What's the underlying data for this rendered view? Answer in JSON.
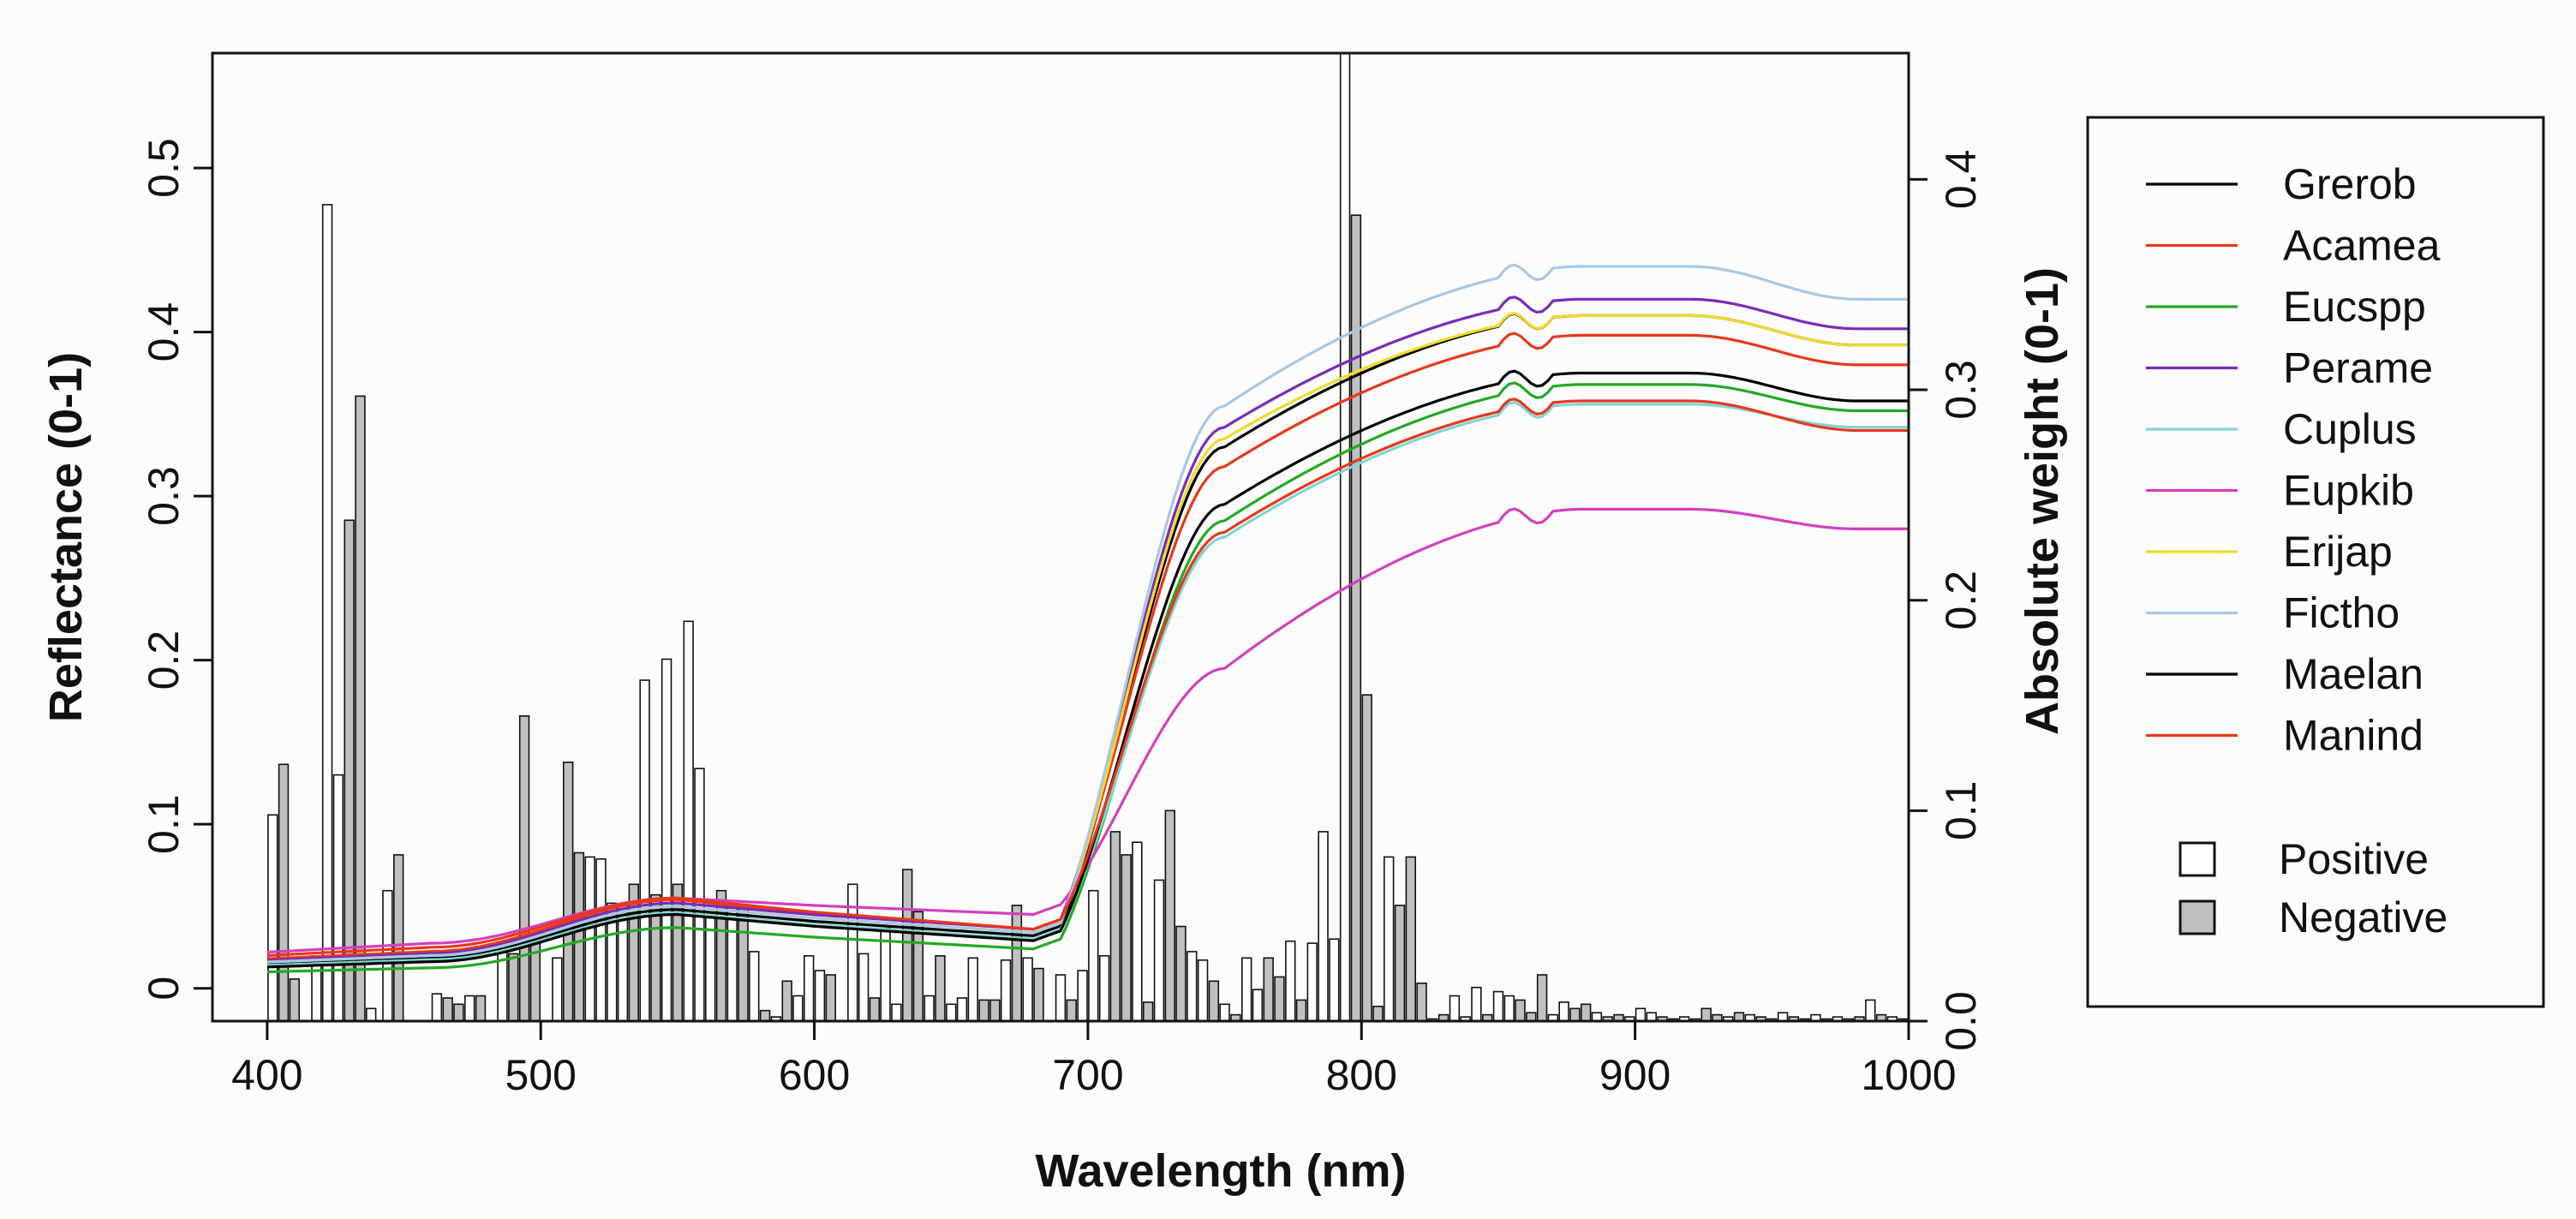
{
  "chart_data": {
    "type": "line",
    "xlabel": "Wavelength (nm)",
    "ylabel": "Reflectance (0-1)",
    "y2label": "Absolute weight (0-1)",
    "xlim": [
      380,
      1000
    ],
    "ylim": [
      -0.02,
      0.57
    ],
    "y2lim": [
      0.0,
      0.46
    ],
    "x_ticks": [
      400,
      500,
      600,
      700,
      800,
      900,
      1000
    ],
    "y_ticks": [
      0,
      0.1,
      0.2,
      0.3,
      0.4,
      0.5
    ],
    "y_tick_labels": [
      "0",
      "0.1",
      "0.2",
      "0.3",
      "0.4",
      "0.5"
    ],
    "y2_ticks": [
      0.0,
      0.1,
      0.2,
      0.3,
      0.4
    ],
    "y2_tick_labels": [
      "0.0",
      "0.1",
      "0.2",
      "0.3",
      "0.4"
    ],
    "grid": false,
    "legend_position": "right",
    "series": [
      {
        "name": "Grerob",
        "color": "#000000",
        "v400": 0.015,
        "v550": 0.048,
        "v680": 0.032,
        "v750": 0.33,
        "v880": 0.41,
        "v1000": 0.392
      },
      {
        "name": "Acamea",
        "color": "#e8381b",
        "v400": 0.018,
        "v550": 0.054,
        "v680": 0.036,
        "v750": 0.318,
        "v880": 0.398,
        "v1000": 0.38
      },
      {
        "name": "Eucspp",
        "color": "#22aa22",
        "v400": 0.01,
        "v550": 0.037,
        "v680": 0.024,
        "v750": 0.285,
        "v880": 0.368,
        "v1000": 0.352
      },
      {
        "name": "Perame",
        "color": "#7a2bb8",
        "v400": 0.017,
        "v550": 0.052,
        "v680": 0.036,
        "v750": 0.342,
        "v880": 0.42,
        "v1000": 0.402
      },
      {
        "name": "Cuplus",
        "color": "#7fd6d4",
        "v400": 0.014,
        "v550": 0.046,
        "v680": 0.03,
        "v750": 0.275,
        "v880": 0.356,
        "v1000": 0.342
      },
      {
        "name": "Eupkib",
        "color": "#d43fc0",
        "v400": 0.022,
        "v550": 0.055,
        "v680": 0.045,
        "v750": 0.195,
        "v880": 0.292,
        "v1000": 0.28
      },
      {
        "name": "Erijap",
        "color": "#f0dc2a",
        "v400": 0.016,
        "v550": 0.05,
        "v680": 0.034,
        "v750": 0.335,
        "v880": 0.41,
        "v1000": 0.392
      },
      {
        "name": "Fictho",
        "color": "#a8c8e4",
        "v400": 0.016,
        "v550": 0.05,
        "v680": 0.034,
        "v750": 0.355,
        "v880": 0.44,
        "v1000": 0.42
      },
      {
        "name": "Maelan",
        "color": "#000000",
        "v400": 0.013,
        "v550": 0.045,
        "v680": 0.029,
        "v750": 0.295,
        "v880": 0.375,
        "v1000": 0.358
      },
      {
        "name": "Manind",
        "color": "#e8381b",
        "v400": 0.02,
        "v550": 0.055,
        "v680": 0.036,
        "v750": 0.278,
        "v880": 0.358,
        "v1000": 0.34
      }
    ],
    "bar_series": [
      {
        "name": "Positive",
        "fill": "#ffffff"
      },
      {
        "name": "Negative",
        "fill": "#c0c0c0"
      }
    ],
    "bars": [
      {
        "x": 402,
        "w": 0.098,
        "sign": "Positive"
      },
      {
        "x": 406,
        "w": 0.122,
        "sign": "Negative"
      },
      {
        "x": 410,
        "w": 0.02,
        "sign": "Negative"
      },
      {
        "x": 418,
        "w": 0.031,
        "sign": "Positive"
      },
      {
        "x": 422,
        "w": 0.388,
        "sign": "Positive"
      },
      {
        "x": 426,
        "w": 0.117,
        "sign": "Positive"
      },
      {
        "x": 430,
        "w": 0.238,
        "sign": "Negative"
      },
      {
        "x": 434,
        "w": 0.297,
        "sign": "Negative"
      },
      {
        "x": 438,
        "w": 0.006,
        "sign": "Positive"
      },
      {
        "x": 444,
        "w": 0.062,
        "sign": "Positive"
      },
      {
        "x": 448,
        "w": 0.079,
        "sign": "Negative"
      },
      {
        "x": 462,
        "w": 0.013,
        "sign": "Positive"
      },
      {
        "x": 466,
        "w": 0.011,
        "sign": "Negative"
      },
      {
        "x": 470,
        "w": 0.008,
        "sign": "Negative"
      },
      {
        "x": 474,
        "w": 0.012,
        "sign": "Positive"
      },
      {
        "x": 478,
        "w": 0.012,
        "sign": "Negative"
      },
      {
        "x": 486,
        "w": 0.035,
        "sign": "Positive"
      },
      {
        "x": 490,
        "w": 0.032,
        "sign": "Negative"
      },
      {
        "x": 494,
        "w": 0.145,
        "sign": "Negative"
      },
      {
        "x": 498,
        "w": 0.04,
        "sign": "Negative"
      },
      {
        "x": 506,
        "w": 0.03,
        "sign": "Positive"
      },
      {
        "x": 510,
        "w": 0.123,
        "sign": "Negative"
      },
      {
        "x": 514,
        "w": 0.08,
        "sign": "Negative"
      },
      {
        "x": 518,
        "w": 0.078,
        "sign": "Positive"
      },
      {
        "x": 522,
        "w": 0.077,
        "sign": "Positive"
      },
      {
        "x": 526,
        "w": 0.056,
        "sign": "Positive"
      },
      {
        "x": 530,
        "w": 0.055,
        "sign": "Positive"
      },
      {
        "x": 534,
        "w": 0.065,
        "sign": "Negative"
      },
      {
        "x": 538,
        "w": 0.162,
        "sign": "Positive"
      },
      {
        "x": 542,
        "w": 0.06,
        "sign": "Negative"
      },
      {
        "x": 546,
        "w": 0.172,
        "sign": "Positive"
      },
      {
        "x": 550,
        "w": 0.065,
        "sign": "Negative"
      },
      {
        "x": 554,
        "w": 0.19,
        "sign": "Positive"
      },
      {
        "x": 558,
        "w": 0.12,
        "sign": "Positive"
      },
      {
        "x": 562,
        "w": 0.05,
        "sign": "Positive"
      },
      {
        "x": 566,
        "w": 0.062,
        "sign": "Negative"
      },
      {
        "x": 570,
        "w": 0.055,
        "sign": "Positive"
      },
      {
        "x": 574,
        "w": 0.055,
        "sign": "Negative"
      },
      {
        "x": 578,
        "w": 0.033,
        "sign": "Positive"
      },
      {
        "x": 582,
        "w": 0.005,
        "sign": "Negative"
      },
      {
        "x": 586,
        "w": 0.002,
        "sign": "Positive"
      },
      {
        "x": 590,
        "w": 0.019,
        "sign": "Negative"
      },
      {
        "x": 594,
        "w": 0.012,
        "sign": "Positive"
      },
      {
        "x": 598,
        "w": 0.031,
        "sign": "Positive"
      },
      {
        "x": 602,
        "w": 0.024,
        "sign": "Positive"
      },
      {
        "x": 606,
        "w": 0.022,
        "sign": "Negative"
      },
      {
        "x": 614,
        "w": 0.065,
        "sign": "Positive"
      },
      {
        "x": 618,
        "w": 0.032,
        "sign": "Positive"
      },
      {
        "x": 622,
        "w": 0.011,
        "sign": "Negative"
      },
      {
        "x": 626,
        "w": 0.044,
        "sign": "Positive"
      },
      {
        "x": 630,
        "w": 0.008,
        "sign": "Positive"
      },
      {
        "x": 634,
        "w": 0.072,
        "sign": "Negative"
      },
      {
        "x": 638,
        "w": 0.052,
        "sign": "Negative"
      },
      {
        "x": 642,
        "w": 0.012,
        "sign": "Positive"
      },
      {
        "x": 646,
        "w": 0.031,
        "sign": "Negative"
      },
      {
        "x": 650,
        "w": 0.008,
        "sign": "Positive"
      },
      {
        "x": 654,
        "w": 0.011,
        "sign": "Positive"
      },
      {
        "x": 658,
        "w": 0.03,
        "sign": "Positive"
      },
      {
        "x": 662,
        "w": 0.01,
        "sign": "Negative"
      },
      {
        "x": 666,
        "w": 0.01,
        "sign": "Negative"
      },
      {
        "x": 670,
        "w": 0.029,
        "sign": "Positive"
      },
      {
        "x": 674,
        "w": 0.055,
        "sign": "Negative"
      },
      {
        "x": 678,
        "w": 0.03,
        "sign": "Positive"
      },
      {
        "x": 682,
        "w": 0.025,
        "sign": "Negative"
      },
      {
        "x": 690,
        "w": 0.022,
        "sign": "Positive"
      },
      {
        "x": 694,
        "w": 0.01,
        "sign": "Negative"
      },
      {
        "x": 698,
        "w": 0.024,
        "sign": "Positive"
      },
      {
        "x": 702,
        "w": 0.062,
        "sign": "Positive"
      },
      {
        "x": 706,
        "w": 0.031,
        "sign": "Positive"
      },
      {
        "x": 710,
        "w": 0.09,
        "sign": "Negative"
      },
      {
        "x": 714,
        "w": 0.079,
        "sign": "Negative"
      },
      {
        "x": 718,
        "w": 0.085,
        "sign": "Positive"
      },
      {
        "x": 722,
        "w": 0.009,
        "sign": "Negative"
      },
      {
        "x": 726,
        "w": 0.067,
        "sign": "Positive"
      },
      {
        "x": 730,
        "w": 0.1,
        "sign": "Negative"
      },
      {
        "x": 734,
        "w": 0.045,
        "sign": "Negative"
      },
      {
        "x": 738,
        "w": 0.033,
        "sign": "Positive"
      },
      {
        "x": 742,
        "w": 0.029,
        "sign": "Positive"
      },
      {
        "x": 746,
        "w": 0.019,
        "sign": "Negative"
      },
      {
        "x": 750,
        "w": 0.008,
        "sign": "Positive"
      },
      {
        "x": 754,
        "w": 0.003,
        "sign": "Negative"
      },
      {
        "x": 758,
        "w": 0.03,
        "sign": "Positive"
      },
      {
        "x": 762,
        "w": 0.015,
        "sign": "Positive"
      },
      {
        "x": 766,
        "w": 0.03,
        "sign": "Negative"
      },
      {
        "x": 770,
        "w": 0.021,
        "sign": "Negative"
      },
      {
        "x": 774,
        "w": 0.038,
        "sign": "Positive"
      },
      {
        "x": 778,
        "w": 0.01,
        "sign": "Negative"
      },
      {
        "x": 782,
        "w": 0.037,
        "sign": "Positive"
      },
      {
        "x": 786,
        "w": 0.09,
        "sign": "Positive"
      },
      {
        "x": 790,
        "w": 0.039,
        "sign": "Positive"
      },
      {
        "x": 794,
        "w": 0.46,
        "sign": "Positive"
      },
      {
        "x": 798,
        "w": 0.383,
        "sign": "Negative"
      },
      {
        "x": 802,
        "w": 0.155,
        "sign": "Negative"
      },
      {
        "x": 806,
        "w": 0.007,
        "sign": "Negative"
      },
      {
        "x": 810,
        "w": 0.078,
        "sign": "Positive"
      },
      {
        "x": 814,
        "w": 0.055,
        "sign": "Negative"
      },
      {
        "x": 818,
        "w": 0.078,
        "sign": "Negative"
      },
      {
        "x": 822,
        "w": 0.018,
        "sign": "Negative"
      },
      {
        "x": 826,
        "w": 0.001,
        "sign": "Positive"
      },
      {
        "x": 830,
        "w": 0.003,
        "sign": "Negative"
      },
      {
        "x": 834,
        "w": 0.012,
        "sign": "Positive"
      },
      {
        "x": 838,
        "w": 0.002,
        "sign": "Positive"
      },
      {
        "x": 842,
        "w": 0.016,
        "sign": "Positive"
      },
      {
        "x": 846,
        "w": 0.003,
        "sign": "Negative"
      },
      {
        "x": 850,
        "w": 0.014,
        "sign": "Positive"
      },
      {
        "x": 854,
        "w": 0.012,
        "sign": "Positive"
      },
      {
        "x": 858,
        "w": 0.01,
        "sign": "Negative"
      },
      {
        "x": 862,
        "w": 0.004,
        "sign": "Negative"
      },
      {
        "x": 866,
        "w": 0.022,
        "sign": "Negative"
      },
      {
        "x": 870,
        "w": 0.003,
        "sign": "Positive"
      },
      {
        "x": 874,
        "w": 0.009,
        "sign": "Positive"
      },
      {
        "x": 878,
        "w": 0.006,
        "sign": "Negative"
      },
      {
        "x": 882,
        "w": 0.008,
        "sign": "Negative"
      },
      {
        "x": 886,
        "w": 0.004,
        "sign": "Positive"
      },
      {
        "x": 890,
        "w": 0.002,
        "sign": "Negative"
      },
      {
        "x": 894,
        "w": 0.003,
        "sign": "Negative"
      },
      {
        "x": 898,
        "w": 0.002,
        "sign": "Positive"
      },
      {
        "x": 902,
        "w": 0.006,
        "sign": "Positive"
      },
      {
        "x": 906,
        "w": 0.004,
        "sign": "Positive"
      },
      {
        "x": 910,
        "w": 0.002,
        "sign": "Negative"
      },
      {
        "x": 914,
        "w": 0.001,
        "sign": "Negative"
      },
      {
        "x": 918,
        "w": 0.002,
        "sign": "Positive"
      },
      {
        "x": 922,
        "w": 0.001,
        "sign": "Positive"
      },
      {
        "x": 926,
        "w": 0.006,
        "sign": "Negative"
      },
      {
        "x": 930,
        "w": 0.003,
        "sign": "Negative"
      },
      {
        "x": 934,
        "w": 0.002,
        "sign": "Positive"
      },
      {
        "x": 938,
        "w": 0.004,
        "sign": "Negative"
      },
      {
        "x": 942,
        "w": 0.003,
        "sign": "Positive"
      },
      {
        "x": 946,
        "w": 0.002,
        "sign": "Negative"
      },
      {
        "x": 950,
        "w": 0.001,
        "sign": "Positive"
      },
      {
        "x": 954,
        "w": 0.004,
        "sign": "Positive"
      },
      {
        "x": 958,
        "w": 0.002,
        "sign": "Negative"
      },
      {
        "x": 962,
        "w": 0.001,
        "sign": "Negative"
      },
      {
        "x": 966,
        "w": 0.003,
        "sign": "Positive"
      },
      {
        "x": 970,
        "w": 0.001,
        "sign": "Negative"
      },
      {
        "x": 974,
        "w": 0.002,
        "sign": "Positive"
      },
      {
        "x": 978,
        "w": 0.001,
        "sign": "Positive"
      },
      {
        "x": 982,
        "w": 0.002,
        "sign": "Negative"
      },
      {
        "x": 986,
        "w": 0.01,
        "sign": "Positive"
      },
      {
        "x": 990,
        "w": 0.003,
        "sign": "Negative"
      },
      {
        "x": 994,
        "w": 0.002,
        "sign": "Positive"
      },
      {
        "x": 998,
        "w": 0.001,
        "sign": "Negative"
      }
    ]
  }
}
